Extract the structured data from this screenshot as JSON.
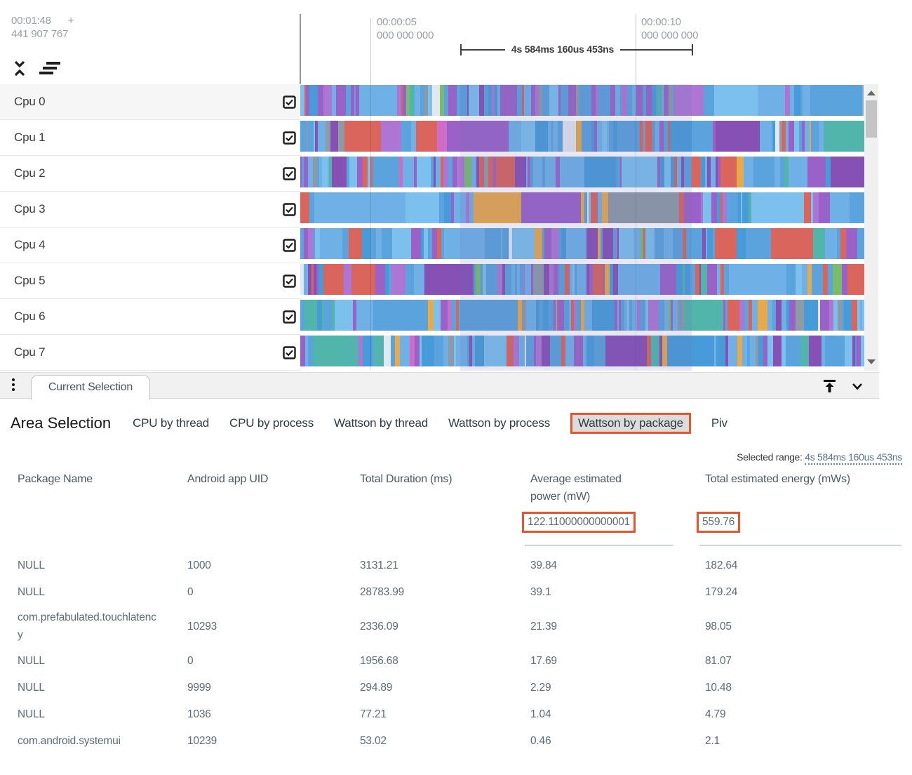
{
  "timeline": {
    "cursor_time": "00:01:48",
    "cursor_plus": "+",
    "cursor_ns": "441 907 767",
    "ticks": [
      {
        "label1": "00:00:05",
        "label2": "000 000 000"
      },
      {
        "label1": "00:00:10",
        "label2": "000 000 000"
      }
    ],
    "range_label": "4s 584ms 160us 453ns"
  },
  "tracks": [
    {
      "label": "Cpu 0",
      "checked": true
    },
    {
      "label": "Cpu 1",
      "checked": true
    },
    {
      "label": "Cpu 2",
      "checked": true
    },
    {
      "label": "Cpu 3",
      "checked": true
    },
    {
      "label": "Cpu 4",
      "checked": true
    },
    {
      "label": "Cpu 5",
      "checked": true
    },
    {
      "label": "Cpu 6",
      "checked": true
    },
    {
      "label": "Cpu 7",
      "checked": true
    }
  ],
  "tab_bar": {
    "tab_label": "Current Selection"
  },
  "details": {
    "title": "Area Selection",
    "tabs": [
      "CPU by thread",
      "CPU by process",
      "Wattson by thread",
      "Wattson by process",
      "Wattson by package",
      "Piv"
    ],
    "active_tab": "Wattson by package",
    "selected_range_label": "Selected range:",
    "selected_range_value": "4s 584ms 160us 453ns",
    "table": {
      "columns": [
        "Package Name",
        "Android app UID",
        "Total Duration (ms)",
        "Average estimated power (mW)",
        "Total estimated energy (mWs)"
      ],
      "summary": {
        "avg_power": "122.11000000000001",
        "total_energy": "559.76"
      },
      "rows": [
        [
          "NULL",
          "1000",
          "3131.21",
          "39.84",
          "182.64"
        ],
        [
          "NULL",
          "0",
          "28783.99",
          "39.1",
          "179.24"
        ],
        [
          "com.prefabulated.touchlatency",
          "10293",
          "2336.09",
          "21.39",
          "98.05"
        ],
        [
          "NULL",
          "0",
          "1956.68",
          "17.69",
          "81.07"
        ],
        [
          "NULL",
          "9999",
          "294.89",
          "2.29",
          "10.48"
        ],
        [
          "NULL",
          "1036",
          "77.21",
          "1.04",
          "4.79"
        ],
        [
          "com.android.systemui",
          "10239",
          "53.02",
          "0.46",
          "2.1"
        ]
      ]
    }
  },
  "colors": {
    "annotation": "#e8542c",
    "link": "#5c7489"
  },
  "track_stripes": {
    "row_seeds": [
      11,
      23,
      37,
      41,
      53,
      67,
      79,
      97
    ],
    "wide_chance": 0.05,
    "palette": [
      {
        "color": "#5ba3dc",
        "weight": 20
      },
      {
        "color": "#6fb1e7",
        "weight": 14
      },
      {
        "color": "#479bd8",
        "weight": 8
      },
      {
        "color": "#7cc0ee",
        "weight": 6
      },
      {
        "color": "#9a62c8",
        "weight": 12
      },
      {
        "color": "#8750b5",
        "weight": 7
      },
      {
        "color": "#ad76d4",
        "weight": 5
      },
      {
        "color": "#d9655c",
        "weight": 8
      },
      {
        "color": "#e8a94a",
        "weight": 4
      },
      {
        "color": "#52b5ac",
        "weight": 2
      },
      {
        "color": "#7abd68",
        "weight": 1.5
      },
      {
        "color": "#8e9aa6",
        "weight": 2.5
      },
      {
        "color": "#cf6cc8",
        "weight": 1
      },
      {
        "color": "#e2e8f0",
        "weight": 2
      }
    ]
  }
}
